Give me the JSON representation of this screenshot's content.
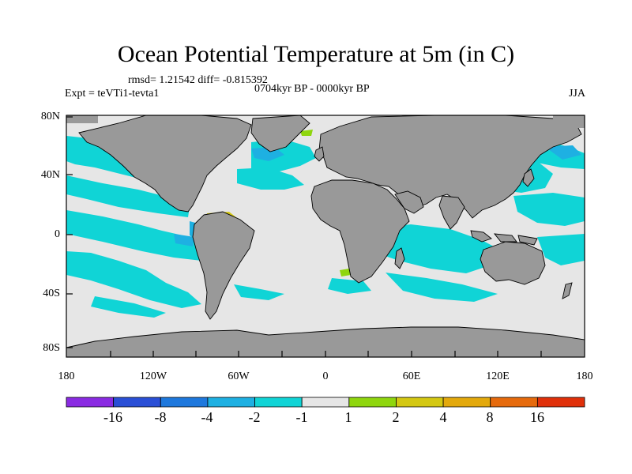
{
  "title": "Ocean Potential Temperature at 5m (in C)",
  "stats": "rmsd= 1.21542 diff= -0.815392",
  "period": "0704kyr BP - 0000kyr BP",
  "experiment": "Expt = teVTi1-tevta1",
  "season": "JJA",
  "y_ticks": [
    "80N",
    "40N",
    "0",
    "40S",
    "80S"
  ],
  "x_ticks": [
    "180",
    "120W",
    "60W",
    "0",
    "60E",
    "120E",
    "180"
  ],
  "colorbar": {
    "labels": [
      "-16",
      "-8",
      "-4",
      "-2",
      "-1",
      "1",
      "2",
      "4",
      "8",
      "16"
    ],
    "colors": [
      "#8a2be2",
      "#2a4fd6",
      "#1e78dd",
      "#1eb0e2",
      "#10d4d6",
      "#e6e6e6",
      "#8fd60e",
      "#d4c812",
      "#e3a90c",
      "#e66a0c",
      "#e0300a"
    ]
  },
  "map_colors": {
    "land": "#999999",
    "near_zero": "#e6e6e6",
    "cool_1_2": "#10d4d6",
    "cool_2_4": "#1eb0e2",
    "warm_1_2": "#8fd60e",
    "warm_2_4": "#d4c812"
  }
}
